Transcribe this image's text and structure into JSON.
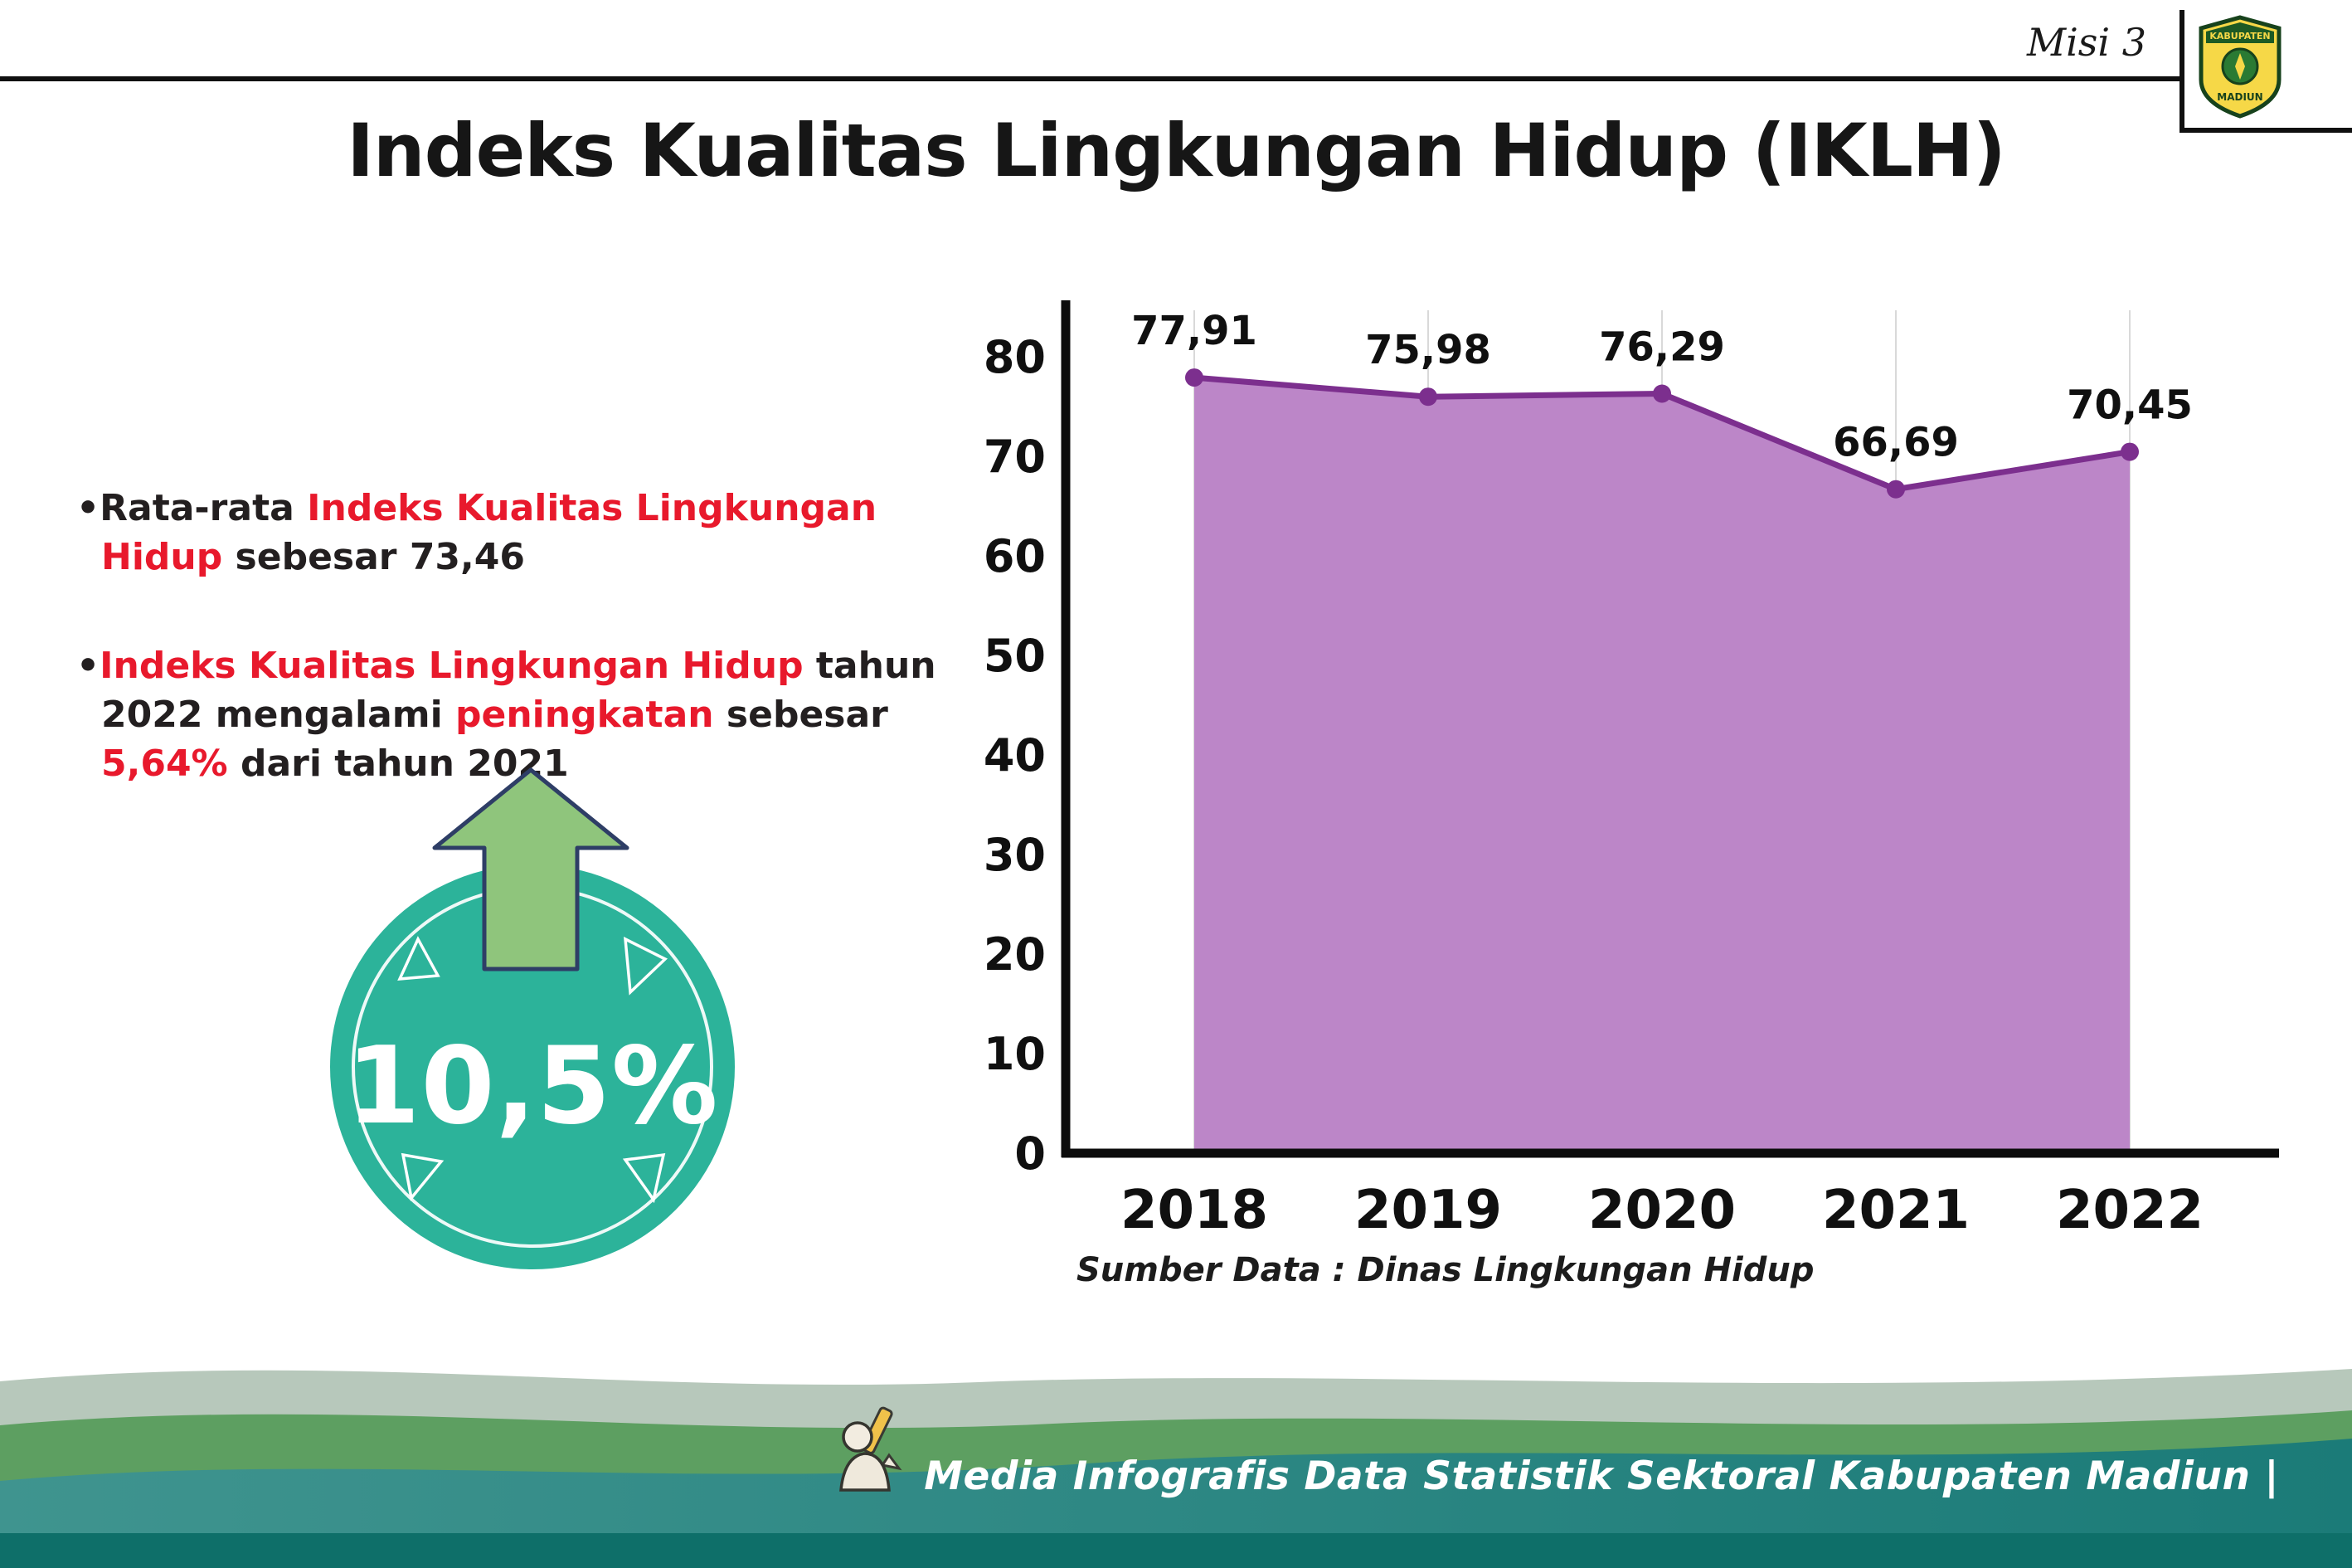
{
  "header": {
    "misi": "Misi 3",
    "title": "Indeks Kualitas Lingkungan Hidup (IKLH)"
  },
  "logo": {
    "top": "KABUPATEN",
    "bottom": "MADIUN"
  },
  "bullets": [
    {
      "marker": "•",
      "segments": [
        {
          "text": "Rata-rata ",
          "color": "text"
        },
        {
          "text": "Indeks Kualitas Lingkungan Hidup",
          "color": "red"
        },
        {
          "text": " sebesar 73,46",
          "color": "text"
        }
      ]
    },
    {
      "marker": "•",
      "segments": [
        {
          "text": "Indeks Kualitas Lingkungan Hidup",
          "color": "red"
        },
        {
          "text": " tahun 2022 mengalami ",
          "color": "text"
        },
        {
          "text": "peningkatan",
          "color": "red"
        },
        {
          "text": " sebesar ",
          "color": "text"
        },
        {
          "text": "5,64%",
          "color": "red"
        },
        {
          "text": " dari tahun 2021",
          "color": "text"
        }
      ]
    }
  ],
  "badge": {
    "value": "10,5%"
  },
  "chart_data": {
    "type": "area",
    "title": "Indeks Kualitas Lingkungan Hidup (IKLH)",
    "categories": [
      "2018",
      "2019",
      "2020",
      "2021",
      "2022"
    ],
    "values": [
      77.91,
      75.98,
      76.29,
      66.69,
      70.45
    ],
    "labels": [
      "77,91",
      "75,98",
      "76,29",
      "66,69",
      "70,45"
    ],
    "ylim": [
      0,
      80
    ],
    "ytick_step": 10,
    "grid": "vertical-light",
    "legend": "none",
    "source": "Sumber Data : Dinas Lingkungan Hidup"
  },
  "footer": {
    "caption": "Media Infografis Data Statistik Sektoral Kabupaten Madiun |"
  },
  "colors": {
    "red": "#e8192c",
    "text": "#231f20",
    "teal": "#2cb39a",
    "arrow-green": "#8fc57c",
    "arrow-outline": "#2e3e66",
    "area": "#bc86c8",
    "line": "#7c2f8e",
    "grid": "#d9d9d9",
    "sage": "#b7c8bb",
    "green": "#5d9f61",
    "teal-band-1": "#3f948f",
    "teal-band-2": "#1b7b78",
    "strip": "#0e6f69"
  }
}
